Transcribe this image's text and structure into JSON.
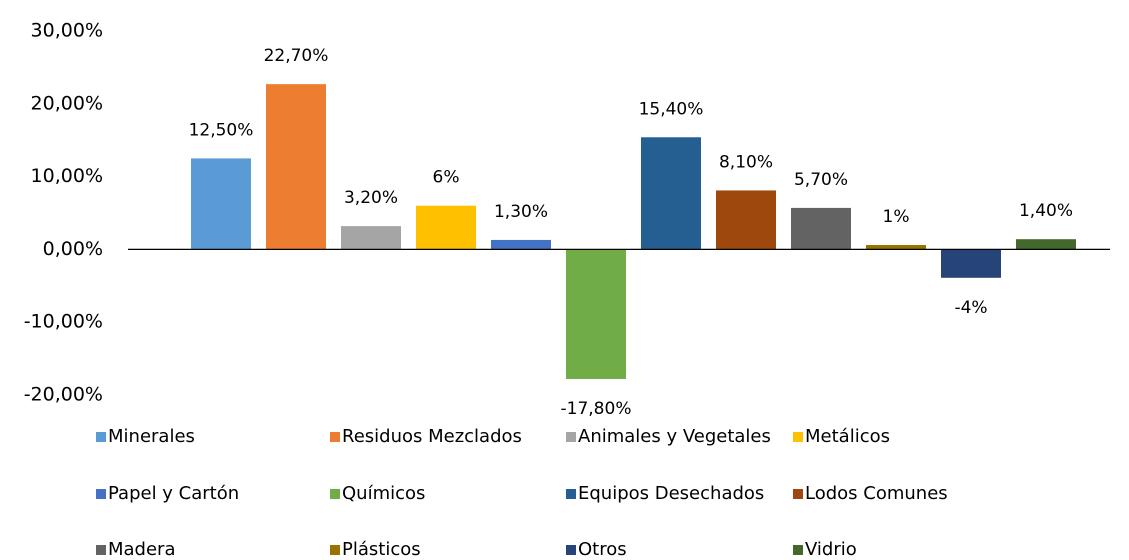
{
  "chart_data": {
    "type": "bar",
    "series": [
      {
        "name": "Minerales",
        "color": "#5b9bd5",
        "values": [
          12.5
        ],
        "value_labels": [
          "12,50%"
        ]
      },
      {
        "name": "Residuos Mezclados",
        "color": "#ed7d31",
        "values": [
          22.7
        ],
        "value_labels": [
          "22,70%"
        ]
      },
      {
        "name": "Animales y Vegetales",
        "color": "#a5a5a5",
        "values": [
          3.2
        ],
        "value_labels": [
          "3,20%"
        ]
      },
      {
        "name": "Metálicos",
        "color": "#ffc000",
        "values": [
          6
        ],
        "value_labels": [
          "6%"
        ]
      },
      {
        "name": "Papel y Cartón",
        "color": "#4472c4",
        "values": [
          1.3
        ],
        "value_labels": [
          "1,30%"
        ]
      },
      {
        "name": "Químicos",
        "color": "#70ad47",
        "values": [
          -17.8
        ],
        "value_labels": [
          "-17,80%"
        ]
      },
      {
        "name": "Equipos Desechados",
        "color": "#255e91",
        "values": [
          15.4
        ],
        "value_labels": [
          "15,40%"
        ]
      },
      {
        "name": "Lodos Comunes",
        "color": "#9e480e",
        "values": [
          8.1
        ],
        "value_labels": [
          "8,10%"
        ]
      },
      {
        "name": "Madera",
        "color": "#636363",
        "values": [
          5.7
        ],
        "value_labels": [
          "5,70%"
        ]
      },
      {
        "name": "Plásticos",
        "color": "#997300",
        "values": [
          0.6
        ],
        "value_labels": [
          "1%"
        ]
      },
      {
        "name": "Otros",
        "color": "#264478",
        "values": [
          -3.9
        ],
        "value_labels": [
          "-4%"
        ]
      },
      {
        "name": "Vidrio",
        "color": "#43682b",
        "values": [
          1.4
        ],
        "value_labels": [
          "1,40%"
        ]
      }
    ],
    "ylim": [
      -20,
      30
    ],
    "yticks": [
      {
        "value": -20,
        "label": "-20,00%"
      },
      {
        "value": -10,
        "label": "-10,00%"
      },
      {
        "value": 0,
        "label": "0,00%"
      },
      {
        "value": 10,
        "label": "10,00%"
      },
      {
        "value": 20,
        "label": "20,00%"
      },
      {
        "value": 30,
        "label": "30,00%"
      }
    ],
    "grid": false,
    "legend": "bottom"
  }
}
